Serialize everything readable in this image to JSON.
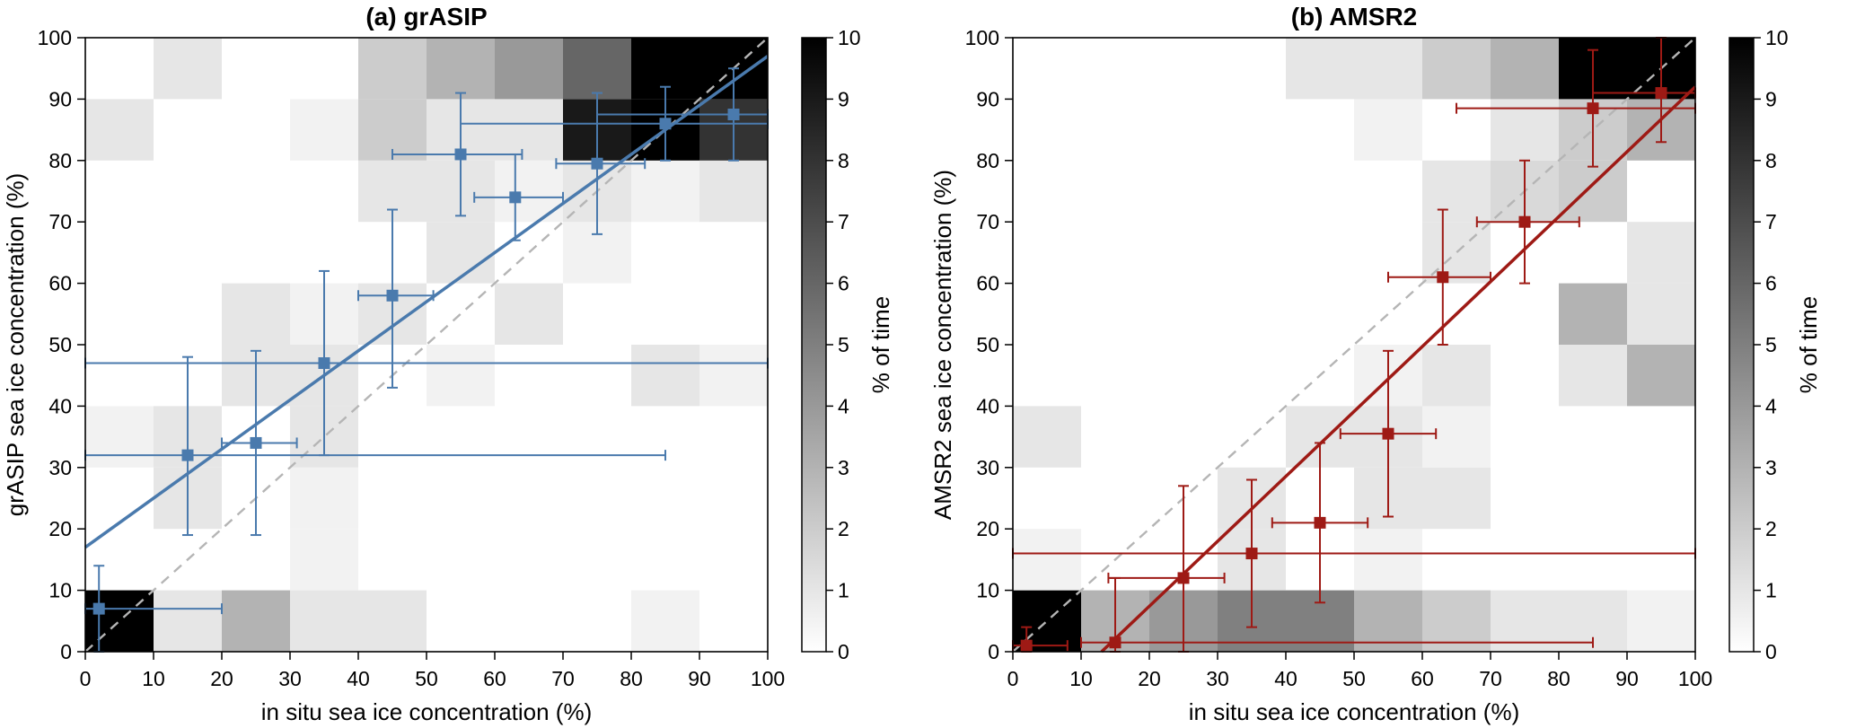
{
  "chart_data": [
    {
      "type": "heatmap",
      "title": "(a) grASIP",
      "xlabel": "in situ sea ice concentration (%)",
      "ylabel": "grASIP sea ice concentration (%)",
      "xlim": [
        0,
        100
      ],
      "ylim": [
        0,
        100
      ],
      "x_ticks": [
        0,
        10,
        20,
        30,
        40,
        50,
        60,
        70,
        80,
        90,
        100
      ],
      "y_ticks": [
        0,
        10,
        20,
        30,
        40,
        50,
        60,
        70,
        80,
        90,
        100
      ],
      "accent_color": "#4a7aad",
      "identity_line_color": "#b5b5b5",
      "identity_line": {
        "style": "dashed",
        "from": [
          0,
          0
        ],
        "to": [
          100,
          100
        ]
      },
      "fit_line": {
        "from": [
          0,
          17
        ],
        "to": [
          100,
          97
        ]
      },
      "colorbar": {
        "label": "% of time",
        "min": 0,
        "max": 10,
        "ticks": [
          0,
          1,
          2,
          3,
          4,
          5,
          6,
          7,
          8,
          9,
          10
        ],
        "colormap": "white-to-black"
      },
      "heatmap": {
        "bin_size": 10,
        "scale_max": 10,
        "row_order": "bottom-to-top",
        "values": [
          [
            10,
            1,
            3,
            1,
            1,
            0,
            0,
            0,
            0.5,
            0
          ],
          [
            0,
            0,
            0,
            0.5,
            0,
            0,
            0,
            0,
            0,
            0
          ],
          [
            0,
            1,
            0,
            0.5,
            0,
            0,
            0,
            0,
            0,
            0
          ],
          [
            0.5,
            1,
            0,
            1,
            0,
            0,
            0,
            0,
            0,
            0
          ],
          [
            0,
            0,
            1,
            1,
            0,
            0.5,
            0,
            0,
            1,
            0.5
          ],
          [
            0,
            0,
            1,
            0.5,
            1,
            0,
            1,
            0,
            0,
            0
          ],
          [
            0,
            0,
            0,
            0,
            0,
            1,
            0,
            0.5,
            0,
            0
          ],
          [
            0,
            0,
            0,
            0,
            1,
            1,
            0.5,
            1,
            0.5,
            1
          ],
          [
            1,
            0,
            0,
            0.5,
            2,
            1,
            1,
            9,
            10,
            8
          ],
          [
            0,
            1,
            0,
            0,
            2,
            3,
            4,
            6,
            10,
            10
          ]
        ]
      },
      "points": [
        {
          "x": 2,
          "y": 7,
          "xlo": 0,
          "xhi": 20,
          "ylo": 0,
          "yhi": 14
        },
        {
          "x": 15,
          "y": 32,
          "xlo": 0,
          "xhi": 85,
          "ylo": 19,
          "yhi": 48
        },
        {
          "x": 25,
          "y": 34,
          "xlo": 20,
          "xhi": 31,
          "ylo": 19,
          "yhi": 49
        },
        {
          "x": 35,
          "y": 47,
          "xlo": 0,
          "xhi": 100,
          "ylo": 32,
          "yhi": 62
        },
        {
          "x": 45,
          "y": 58,
          "xlo": 40,
          "xhi": 51,
          "ylo": 43,
          "yhi": 72
        },
        {
          "x": 55,
          "y": 81,
          "xlo": 45,
          "xhi": 64,
          "ylo": 71,
          "yhi": 91
        },
        {
          "x": 63,
          "y": 74,
          "xlo": 57,
          "xhi": 70,
          "ylo": 67,
          "yhi": 81
        },
        {
          "x": 75,
          "y": 79.5,
          "xlo": 69,
          "xhi": 82,
          "ylo": 68,
          "yhi": 91
        },
        {
          "x": 85,
          "y": 86,
          "xlo": 55,
          "xhi": 100,
          "ylo": 80,
          "yhi": 92
        },
        {
          "x": 95,
          "y": 87.5,
          "xlo": 75,
          "xhi": 100,
          "ylo": 80,
          "yhi": 95
        }
      ]
    },
    {
      "type": "heatmap",
      "title": "(b) AMSR2",
      "xlabel": "in situ sea ice concentration (%)",
      "ylabel": "AMSR2 sea ice concentration (%)",
      "xlim": [
        0,
        100
      ],
      "ylim": [
        0,
        100
      ],
      "x_ticks": [
        0,
        10,
        20,
        30,
        40,
        50,
        60,
        70,
        80,
        90,
        100
      ],
      "y_ticks": [
        0,
        10,
        20,
        30,
        40,
        50,
        60,
        70,
        80,
        90,
        100
      ],
      "accent_color": "#9e1a15",
      "identity_line_color": "#b5b5b5",
      "identity_line": {
        "style": "dashed",
        "from": [
          0,
          0
        ],
        "to": [
          100,
          100
        ]
      },
      "fit_line": {
        "from": [
          13,
          0
        ],
        "to": [
          100,
          92
        ]
      },
      "colorbar": {
        "label": "% of time",
        "min": 0,
        "max": 10,
        "ticks": [
          0,
          1,
          2,
          3,
          4,
          5,
          6,
          7,
          8,
          9,
          10
        ],
        "colormap": "white-to-black"
      },
      "heatmap": {
        "bin_size": 10,
        "scale_max": 10,
        "row_order": "bottom-to-top",
        "values": [
          [
            10,
            3,
            4,
            5,
            5,
            3,
            2,
            1,
            1,
            0.5
          ],
          [
            0.5,
            0,
            0,
            1,
            0,
            0.5,
            0,
            0,
            0,
            0
          ],
          [
            0,
            0,
            0,
            1,
            0,
            1,
            1,
            0,
            0,
            0
          ],
          [
            1,
            0,
            0,
            0,
            1,
            1,
            0.5,
            0,
            0,
            0
          ],
          [
            0,
            0,
            0,
            0,
            0,
            0.5,
            1,
            0,
            1,
            3
          ],
          [
            0,
            0,
            0,
            0,
            0,
            0,
            0,
            0,
            3,
            1
          ],
          [
            0,
            0,
            0,
            0,
            0,
            0,
            1,
            0,
            0,
            1
          ],
          [
            0,
            0,
            0,
            0,
            0,
            0,
            1,
            1.5,
            2,
            0
          ],
          [
            0,
            0,
            0,
            0,
            0,
            0.5,
            0,
            1,
            2,
            3
          ],
          [
            0,
            0,
            0,
            0,
            1,
            1,
            2,
            3,
            10,
            10
          ]
        ]
      },
      "points": [
        {
          "x": 2,
          "y": 1,
          "xlo": 0,
          "xhi": 8,
          "ylo": 0,
          "yhi": 4
        },
        {
          "x": 15,
          "y": 1.5,
          "xlo": 10,
          "xhi": 85,
          "ylo": 0,
          "yhi": 12
        },
        {
          "x": 25,
          "y": 12,
          "xlo": 14,
          "xhi": 31,
          "ylo": 0,
          "yhi": 27
        },
        {
          "x": 35,
          "y": 16,
          "xlo": 0,
          "xhi": 100,
          "ylo": 4,
          "yhi": 28
        },
        {
          "x": 45,
          "y": 21,
          "xlo": 38,
          "xhi": 52,
          "ylo": 8,
          "yhi": 34
        },
        {
          "x": 55,
          "y": 35.5,
          "xlo": 48,
          "xhi": 62,
          "ylo": 22,
          "yhi": 49
        },
        {
          "x": 63,
          "y": 61,
          "xlo": 55,
          "xhi": 70,
          "ylo": 50,
          "yhi": 72
        },
        {
          "x": 75,
          "y": 70,
          "xlo": 68,
          "xhi": 83,
          "ylo": 60,
          "yhi": 80
        },
        {
          "x": 85,
          "y": 88.5,
          "xlo": 65,
          "xhi": 100,
          "ylo": 79,
          "yhi": 98
        },
        {
          "x": 95,
          "y": 91,
          "xlo": 85,
          "xhi": 100,
          "ylo": 83,
          "yhi": 100
        }
      ]
    }
  ]
}
